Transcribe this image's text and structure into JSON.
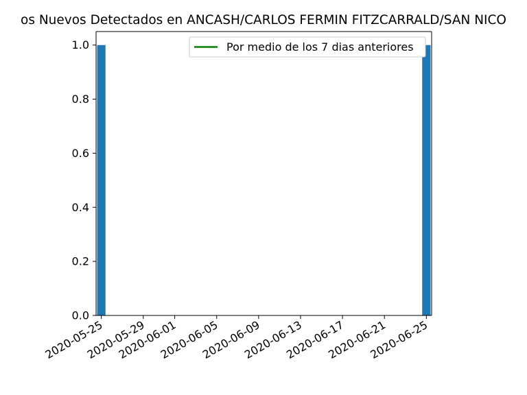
{
  "chart_data": {
    "type": "bar",
    "title": "os Nuevos Detectados en ANCASH/CARLOS FERMIN FITZCARRALD/SAN NICO",
    "xlabel": "",
    "ylabel": "",
    "x_axis_type": "date",
    "xlim": [
      "2020-05-25",
      "2020-06-25"
    ],
    "ylim": [
      0,
      1.05
    ],
    "x_ticks": [
      "2020-05-25",
      "2020-05-29",
      "2020-06-01",
      "2020-06-05",
      "2020-06-09",
      "2020-06-13",
      "2020-06-17",
      "2020-06-21",
      "2020-06-25"
    ],
    "y_ticks": [
      "0.0",
      "0.2",
      "0.4",
      "0.6",
      "0.8",
      "1.0"
    ],
    "grid": false,
    "legend_position": "upper right",
    "series": [
      {
        "type": "bar",
        "color": "#1f77b4",
        "points": [
          {
            "x": "2020-05-25",
            "y": 1.0
          },
          {
            "x": "2020-06-25",
            "y": 1.0
          }
        ]
      },
      {
        "type": "line",
        "name": "Por medio de los 7 dias anteriores",
        "color": "#008000",
        "points": []
      }
    ]
  }
}
